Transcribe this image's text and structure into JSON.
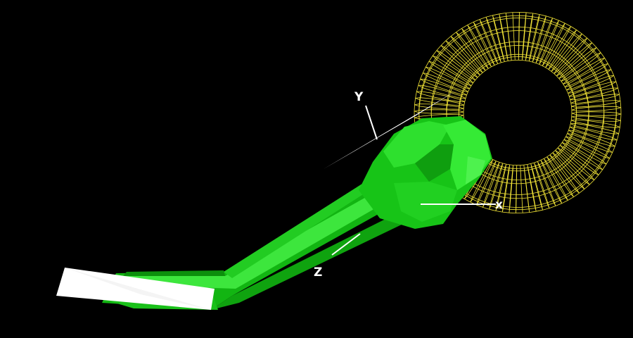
{
  "scene": {
    "background_color": "#000000",
    "objects": [
      {
        "name": "wireframe-torus",
        "color": "#f2e437",
        "style": "wireframe"
      },
      {
        "name": "green-arm-mesh",
        "color": "#1fd51f",
        "style": "solid-shaded"
      },
      {
        "name": "white-pointer-shapes",
        "color": "#ffffff",
        "style": "solid"
      }
    ],
    "axes": {
      "color": "#ffffff",
      "labels": {
        "x": "x",
        "y": "Y",
        "z": "Z"
      }
    }
  }
}
